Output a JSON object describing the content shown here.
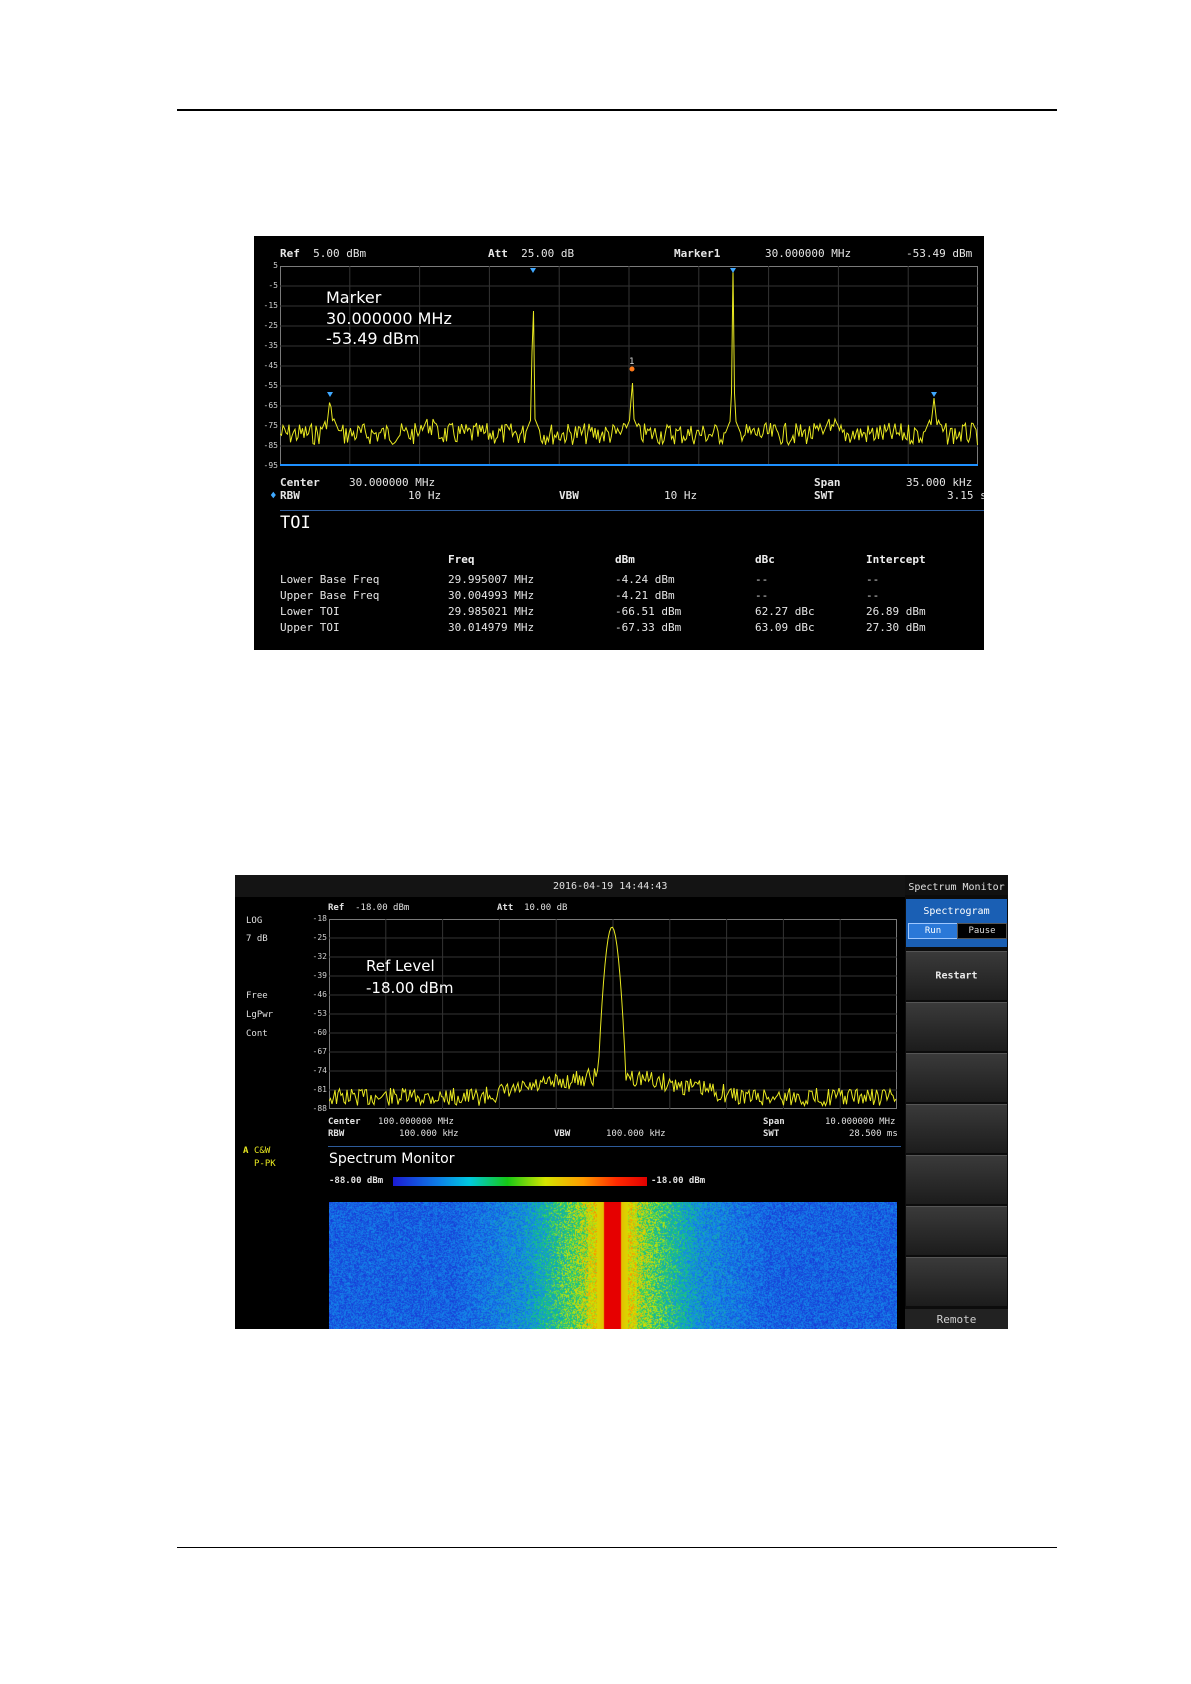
{
  "screen1": {
    "header": {
      "ref_label": "Ref",
      "ref_value": "5.00 dBm",
      "att_label": "Att",
      "att_value": "25.00 dB",
      "marker_label": "Marker1",
      "marker_freq": "30.000000 MHz",
      "marker_level": "-53.49 dBm"
    },
    "y_ticks": [
      "5",
      "-5",
      "-15",
      "-25",
      "-35",
      "-45",
      "-55",
      "-65",
      "-75",
      "-85",
      "-95"
    ],
    "overlay": {
      "line1": "Marker",
      "line2": "30.000000 MHz",
      "line3": "-53.49 dBm"
    },
    "marker_number": "1",
    "footer": {
      "center_label": "Center",
      "center_value": "30.000000 MHz",
      "span_label": "Span",
      "span_value": "35.000 kHz",
      "rbw_label": "RBW",
      "rbw_value": "10 Hz",
      "vbw_label": "VBW",
      "vbw_value": "10 Hz",
      "swt_label": "SWT",
      "swt_value": "3.15 s"
    },
    "toi": {
      "title": "TOI",
      "columns": [
        "Freq",
        "dBm",
        "dBc",
        "Intercept"
      ],
      "rows": [
        [
          "Lower Base Freq",
          "29.995007 MHz",
          "-4.24 dBm",
          "--",
          "--"
        ],
        [
          "Upper Base Freq",
          "30.004993 MHz",
          "-4.21 dBm",
          "--",
          "--"
        ],
        [
          "Lower TOI",
          "29.985021 MHz",
          "-66.51 dBm",
          "62.27 dBc",
          "26.89 dBm"
        ],
        [
          "Upper TOI",
          "30.014979 MHz",
          "-67.33 dBm",
          "63.09 dBc",
          "27.30 dBm"
        ]
      ]
    },
    "colors": {
      "trace": "#e8e820",
      "marker": "#3fa8ff",
      "grid": "#3a3a3a"
    }
  },
  "screen2": {
    "datetime": "2016-04-19  14:44:43",
    "left_panel": [
      "LOG",
      "7 dB",
      "Free",
      "LgPwr",
      "Cont"
    ],
    "trace_mode": {
      "letter": "A",
      "mode": "C&W",
      "detector": "P-PK"
    },
    "header": {
      "ref_label": "Ref",
      "ref_value": "-18.00 dBm",
      "att_label": "Att",
      "att_value": "10.00 dB"
    },
    "y_ticks": [
      "-18",
      "-25",
      "-32",
      "-39",
      "-46",
      "-53",
      "-60",
      "-67",
      "-74",
      "-81",
      "-88"
    ],
    "overlay": {
      "line1": "Ref Level",
      "line2": "-18.00 dBm"
    },
    "footer": {
      "center_label": "Center",
      "center_value": "100.000000 MHz",
      "span_label": "Span",
      "span_value": "10.000000 MHz",
      "rbw_label": "RBW",
      "rbw_value": "100.000 kHz",
      "vbw_label": "VBW",
      "vbw_value": "100.000 kHz",
      "swt_label": "SWT",
      "swt_value": "28.500 ms"
    },
    "monitor_title": "Spectrum Monitor",
    "legend_min": "-88.00 dBm",
    "legend_max": "-18.00 dBm",
    "menu": {
      "title": "Spectrum Monitor",
      "spectrogram": "Spectrogram",
      "run": "Run",
      "pause": "Pause",
      "restart": "Restart",
      "remote": "Remote"
    },
    "colors": {
      "trace": "#e8e820",
      "menu_active": "#1a5fb4"
    }
  }
}
